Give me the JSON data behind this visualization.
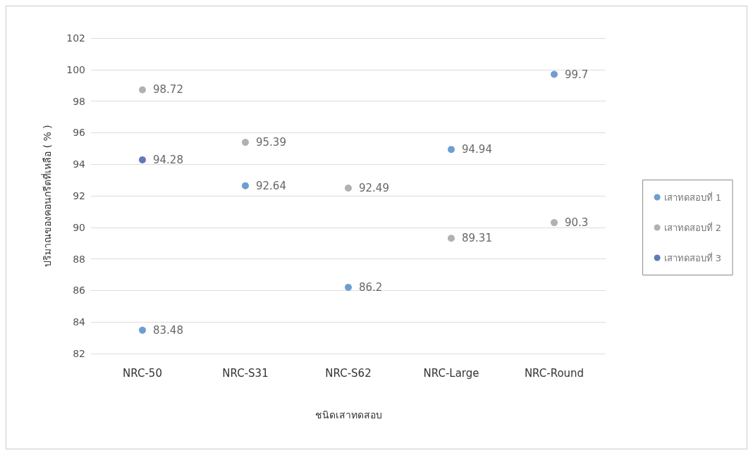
{
  "chart_data": {
    "type": "scatter",
    "xlabel": "ชนิดเสาทดสอบ",
    "ylabel": "ปริมาณของคอนกรีตที่เหลือ ( % )",
    "categories": [
      "NRC-50",
      "NRC-S31",
      "NRC-S62",
      "NRC-Large",
      "NRC-Round"
    ],
    "series": [
      {
        "name": "เสาทดสอบที่ 1",
        "color": "#4a86c8",
        "values": [
          83.48,
          92.64,
          86.2,
          94.94,
          99.7
        ]
      },
      {
        "name": "เสาทดสอบที่ 2",
        "color": "#9e9e9e",
        "values": [
          98.72,
          95.39,
          92.49,
          89.31,
          90.3
        ]
      },
      {
        "name": "เสาทดสอบที่ 3",
        "color": "#3a58a8",
        "values": [
          94.28,
          null,
          null,
          null,
          null
        ]
      }
    ],
    "ylim": [
      82,
      102
    ],
    "yticks": [
      82,
      84,
      86,
      88,
      90,
      92,
      94,
      96,
      98,
      100,
      102
    ],
    "grid": "y",
    "legend": "right",
    "marker": "circle",
    "data_labels": true
  }
}
